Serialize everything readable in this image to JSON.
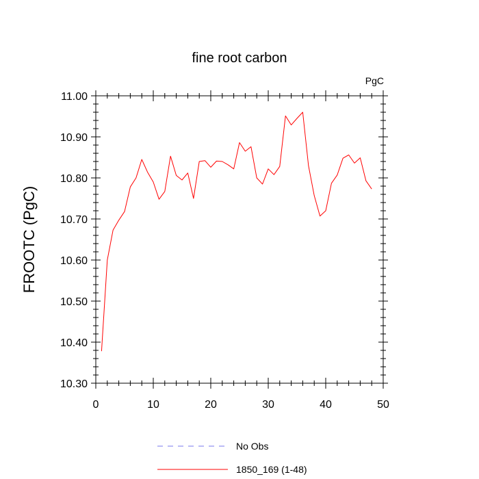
{
  "chart_data": {
    "type": "line",
    "title": "fine root carbon",
    "units": "PgC",
    "ylabel": "FROOTC  (PgC)",
    "xlabel": "",
    "xlim": [
      0,
      50
    ],
    "ylim": [
      10.3,
      11.0
    ],
    "xticks": [
      0,
      10,
      20,
      30,
      40,
      50
    ],
    "xtick_labels": [
      "0",
      "10",
      "20",
      "30",
      "40",
      "50"
    ],
    "yticks": [
      10.3,
      10.4,
      10.5,
      10.6,
      10.7,
      10.8,
      10.9,
      11.0
    ],
    "ytick_labels": [
      "10.30",
      "10.40",
      "10.50",
      "10.60",
      "10.70",
      "10.80",
      "10.90",
      "11.00"
    ],
    "grid": false,
    "legend_position": "bottom",
    "series": [
      {
        "name": "1850_169 (1-48)",
        "color": "#ff0000",
        "style": "solid",
        "x": [
          1,
          2,
          3,
          4,
          5,
          6,
          7,
          8,
          9,
          10,
          11,
          12,
          13,
          14,
          15,
          16,
          17,
          18,
          19,
          20,
          21,
          22,
          23,
          24,
          25,
          26,
          27,
          28,
          29,
          30,
          31,
          32,
          33,
          34,
          35,
          36,
          37,
          38,
          39,
          40,
          41,
          42,
          43,
          44,
          45,
          46,
          47,
          48
        ],
        "values": [
          10.378,
          10.6,
          10.673,
          10.697,
          10.718,
          10.778,
          10.8,
          10.845,
          10.814,
          10.79,
          10.748,
          10.767,
          10.853,
          10.806,
          10.795,
          10.812,
          10.75,
          10.84,
          10.842,
          10.826,
          10.841,
          10.84,
          10.832,
          10.822,
          10.886,
          10.865,
          10.876,
          10.8,
          10.785,
          10.822,
          10.808,
          10.828,
          10.951,
          10.929,
          10.945,
          10.96,
          10.83,
          10.757,
          10.707,
          10.72,
          10.787,
          10.807,
          10.848,
          10.856,
          10.836,
          10.849,
          10.793,
          10.773
        ]
      }
    ],
    "legend": [
      {
        "label": "No Obs",
        "color": "#7777ee",
        "style": "dashed"
      },
      {
        "label": "1850_169 (1-48)",
        "color": "#ff0000",
        "style": "solid"
      }
    ]
  }
}
